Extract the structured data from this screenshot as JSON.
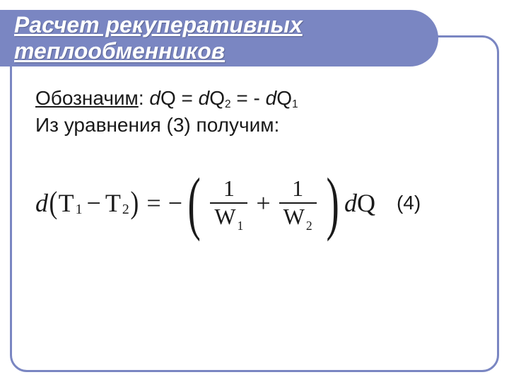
{
  "colors": {
    "accent": "#7a86c2",
    "text": "#1a1a1a",
    "bg": "#ffffff"
  },
  "title": "Расчет рекуперативных теплообменников",
  "body": {
    "denote_label": "Обозначим",
    "denote_rhs_prefix": ": ",
    "dq": "d",
    "q": "Q",
    "eqsign": " = ",
    "dq2_d": "d",
    "dq2_q": "Q",
    "dq2_sub": "2",
    "neg": " - ",
    "dq1_d": "d",
    "dq1_q": "Q",
    "dq1_sub": "1",
    "line2": "Из уравнения (3) получим:"
  },
  "equation": {
    "d": "d",
    "T1": "T",
    "sub1": "1",
    "minus": "−",
    "T2": "T",
    "sub2": "2",
    "equals": "=",
    "neg": "−",
    "one_a": "1",
    "W1": "W",
    "W1sub": "1",
    "plus": "+",
    "one_b": "1",
    "W2": "W",
    "W2sub": "2",
    "tail_d": "d",
    "tail_Q": "Q",
    "number": "(4)"
  }
}
